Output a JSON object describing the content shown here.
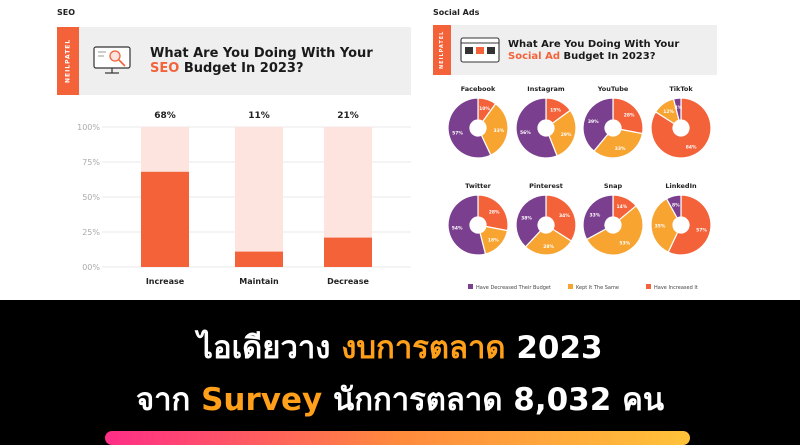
{
  "seo": {
    "section_label": "SEO",
    "brand": "NEILPATEL",
    "title_line1": "What Are You Doing With Your",
    "title_accent": "SEO",
    "title_rest": " Budget In 2023?"
  },
  "social": {
    "section_label": "Social Ads",
    "brand": "NEILPATEL",
    "title_line1": "What Are You Doing With Your",
    "title_accent": "Social Ad",
    "title_rest": " Budget In 2023?"
  },
  "colors": {
    "decreased": "#7b3f8f",
    "same": "#f7a431",
    "increased": "#f4623a",
    "bar_bg": "#fde4de",
    "bar_fill": "#f4623a"
  },
  "chart_data": [
    {
      "type": "bar",
      "categories": [
        "Increase",
        "Maintain",
        "Decrease"
      ],
      "values": [
        68,
        11,
        21
      ],
      "value_labels": [
        "68%",
        "11%",
        "21%"
      ],
      "yticks": [
        "100%",
        "75%",
        "50%",
        "25%",
        "00%"
      ],
      "ylim": [
        0,
        100
      ]
    },
    {
      "type": "pie",
      "legend": [
        "Have Decreased Their Budget",
        "Kept It The Same",
        "Have Increased It"
      ],
      "legend_position": "bottom",
      "charts": [
        {
          "name": "Facebook",
          "values": [
            57,
            33,
            10
          ],
          "labels": [
            "57%",
            "33%",
            "10%"
          ]
        },
        {
          "name": "Instagram",
          "values": [
            56,
            29,
            15
          ],
          "labels": [
            "56%",
            "29%",
            "15%"
          ]
        },
        {
          "name": "YouTube",
          "values": [
            39,
            33,
            28
          ],
          "labels": [
            "39%",
            "33%",
            "28%"
          ]
        },
        {
          "name": "TikTok",
          "values": [
            4,
            12,
            84
          ],
          "labels": [
            "4%",
            "12%",
            "84%"
          ]
        },
        {
          "name": "Twitter",
          "values": [
            54,
            18,
            28
          ],
          "labels": [
            "54%",
            "18%",
            "28%"
          ]
        },
        {
          "name": "Pinterest",
          "values": [
            38,
            28,
            34
          ],
          "labels": [
            "38%",
            "28%",
            "34%"
          ]
        },
        {
          "name": "Snap",
          "values": [
            33,
            53,
            14
          ],
          "labels": [
            "33%",
            "53%",
            "14%"
          ]
        },
        {
          "name": "LinkedIn",
          "values": [
            8,
            35,
            57
          ],
          "labels": [
            "8%",
            "35%",
            "57%"
          ]
        }
      ]
    }
  ],
  "banner": {
    "line1_a": "ไอเดียวาง ",
    "line1_b": "งบการตลาด",
    "line1_c": " 2023",
    "line2_a": "จาก ",
    "line2_b": "Survey",
    "line2_c": " นักการตลาด 8,032 คน"
  }
}
